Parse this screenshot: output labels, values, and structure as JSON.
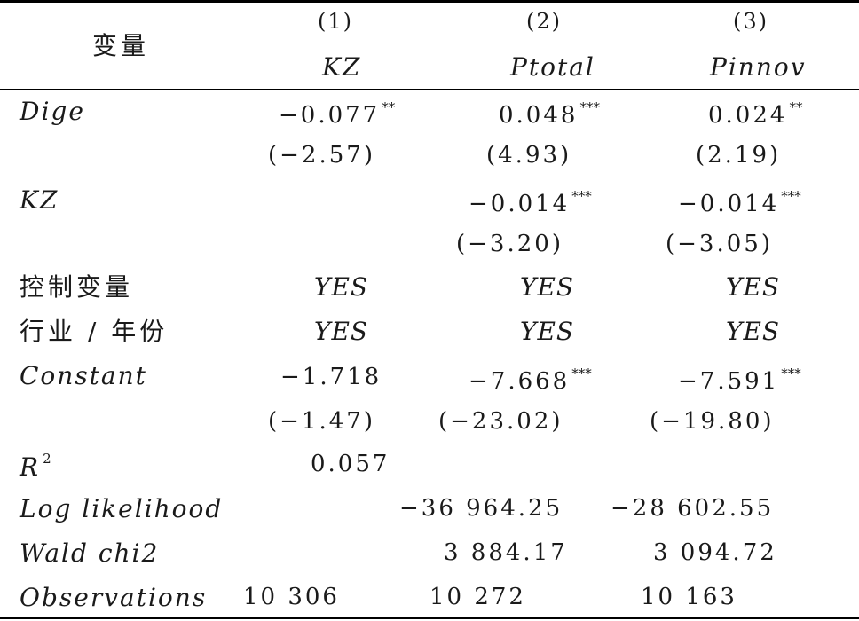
{
  "header": {
    "variable_label": "变量",
    "columns": [
      {
        "num": "(1)",
        "name": "KZ"
      },
      {
        "num": "(2)",
        "name": "Ptotal"
      },
      {
        "num": "(3)",
        "name": "Pinnov"
      }
    ]
  },
  "rows": {
    "dige": {
      "label": "Dige",
      "c1": "−0.077",
      "c1_stars": "**",
      "c2": "0.048",
      "c2_stars": "***",
      "c3": "0.024",
      "c3_stars": "**",
      "t1": "(−2.57)",
      "t2": "(4.93)",
      "t3": "(2.19)"
    },
    "kz": {
      "label": "KZ",
      "c2": "−0.014",
      "c2_stars": "***",
      "c3": "−0.014",
      "c3_stars": "***",
      "t2": "(−3.20)",
      "t3": "(−3.05)"
    },
    "controls": {
      "label": "控制变量",
      "c1": "YES",
      "c2": "YES",
      "c3": "YES"
    },
    "fixed": {
      "label": "行业 / 年份",
      "c1": "YES",
      "c2": "YES",
      "c3": "YES"
    },
    "constant": {
      "label": "Constant",
      "c1": "−1.718",
      "c2": "−7.668",
      "c2_stars": "***",
      "c3": "−7.591",
      "c3_stars": "***",
      "t1": "(−1.47)",
      "t2": "(−23.02)",
      "t3": "(−19.80)"
    },
    "r2": {
      "label": "R",
      "power": "2",
      "c1": "0.057"
    },
    "loglik": {
      "label": "Log likelihood",
      "c2": "−36 964.25",
      "c3": "−28 602.55"
    },
    "wald": {
      "label": "Wald chi2",
      "c2": "3 884.17",
      "c3": "3 094.72"
    },
    "obs": {
      "label": "Observations",
      "c1": "10 306",
      "c2": "10 272",
      "c3": "10 163"
    }
  }
}
